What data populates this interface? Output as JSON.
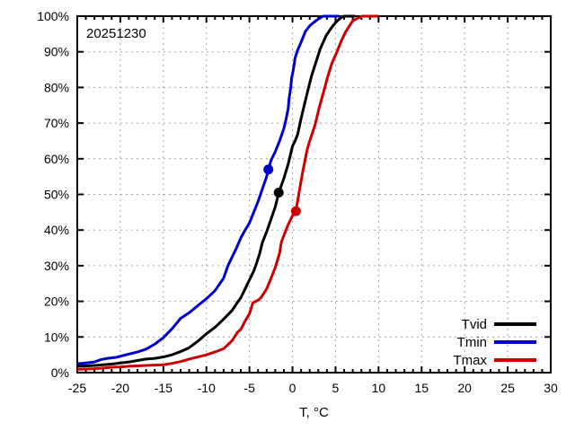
{
  "annotation": {
    "date_label": "20251230"
  },
  "axes": {
    "x": {
      "title": "T, °C",
      "min": -25,
      "max": 30,
      "major_step": 5,
      "minor_step": 1,
      "tick_labels": [
        "-25",
        "-20",
        "-15",
        "-10",
        "-5",
        "0",
        "5",
        "10",
        "15",
        "20",
        "25",
        "30"
      ]
    },
    "y": {
      "min": 0,
      "max": 100,
      "major_step": 10,
      "tick_labels": [
        "0%",
        "10%",
        "20%",
        "30%",
        "40%",
        "50%",
        "60%",
        "70%",
        "80%",
        "90%",
        "100%"
      ]
    }
  },
  "legend": {
    "position": "bottom-right",
    "entries": [
      {
        "label": "Tvid",
        "color": "#000000"
      },
      {
        "label": "Tmin",
        "color": "#0000cc"
      },
      {
        "label": "Tmax",
        "color": "#cc0000"
      }
    ]
  },
  "colors": {
    "background": "#ffffff",
    "grid": "#a6a6a6",
    "axis": "#000000"
  },
  "chart_data": {
    "type": "line",
    "title": "",
    "xlabel": "T, °C",
    "ylabel": "",
    "xlim": [
      -25,
      30
    ],
    "ylim": [
      0,
      100
    ],
    "grid": "dotted, at major ticks",
    "legend_position": "bottom-right",
    "y_unit": "percent",
    "description": "Empirical cumulative distribution functions of daily mean (Tvid), minimum (Tmin) and maximum (Tmax) temperature for calendar date 12-30; filled dots mark observed 2025-12-30 values on each CDF",
    "series": [
      {
        "name": "Tvid",
        "color": "#000000",
        "marker": {
          "x": -1.6,
          "y": 50.5
        },
        "points": [
          [
            -25,
            1.8
          ],
          [
            -24,
            1.9
          ],
          [
            -23,
            2.0
          ],
          [
            -22,
            2.2
          ],
          [
            -21,
            2.4
          ],
          [
            -20,
            2.7
          ],
          [
            -19,
            3.0
          ],
          [
            -18,
            3.4
          ],
          [
            -17,
            3.8
          ],
          [
            -16,
            4.0
          ],
          [
            -15,
            4.4
          ],
          [
            -14,
            5.0
          ],
          [
            -13,
            5.9
          ],
          [
            -12,
            7.0
          ],
          [
            -11,
            8.8
          ],
          [
            -10,
            10.9
          ],
          [
            -9,
            12.7
          ],
          [
            -8,
            15.0
          ],
          [
            -7,
            17.5
          ],
          [
            -6.4,
            19.7
          ],
          [
            -6,
            21.0
          ],
          [
            -5.5,
            23.5
          ],
          [
            -5,
            26.0
          ],
          [
            -4.5,
            28.5
          ],
          [
            -4.2,
            30.5
          ],
          [
            -3.8,
            33.5
          ],
          [
            -3.5,
            36.5
          ],
          [
            -3,
            39.5
          ],
          [
            -2.5,
            43.0
          ],
          [
            -2,
            46.5
          ],
          [
            -1.6,
            50.4
          ],
          [
            -1,
            54.5
          ],
          [
            -0.5,
            58.5
          ],
          [
            0,
            63.5
          ],
          [
            0.3,
            65.0
          ],
          [
            0.6,
            66.8
          ],
          [
            1,
            71.3
          ],
          [
            1.3,
            74.3
          ],
          [
            1.8,
            79.3
          ],
          [
            2.2,
            83.1
          ],
          [
            2.7,
            86.9
          ],
          [
            3.2,
            90.7
          ],
          [
            3.9,
            94.5
          ],
          [
            4.6,
            97.0
          ],
          [
            5,
            98.2
          ],
          [
            5.5,
            99.3
          ],
          [
            5.8,
            99.8
          ],
          [
            6,
            100
          ],
          [
            7.3,
            100
          ]
        ]
      },
      {
        "name": "Tmin",
        "color": "#0000cc",
        "marker": {
          "x": -2.8,
          "y": 57.0
        },
        "points": [
          [
            -25,
            2.5
          ],
          [
            -24,
            2.7
          ],
          [
            -23,
            3.0
          ],
          [
            -22.2,
            3.7
          ],
          [
            -21.5,
            4.0
          ],
          [
            -20.5,
            4.3
          ],
          [
            -20,
            4.6
          ],
          [
            -19,
            5.2
          ],
          [
            -18,
            5.8
          ],
          [
            -17,
            6.6
          ],
          [
            -16,
            8.0
          ],
          [
            -15,
            9.8
          ],
          [
            -14,
            12.3
          ],
          [
            -13,
            15.2
          ],
          [
            -12,
            16.8
          ],
          [
            -11,
            18.8
          ],
          [
            -10,
            20.7
          ],
          [
            -9,
            23.0
          ],
          [
            -8,
            26.5
          ],
          [
            -7.5,
            30.0
          ],
          [
            -7,
            32.5
          ],
          [
            -6.5,
            35.0
          ],
          [
            -6,
            37.8
          ],
          [
            -5.5,
            40.0
          ],
          [
            -5,
            42.0
          ],
          [
            -4.5,
            45.0
          ],
          [
            -4,
            48.0
          ],
          [
            -3.5,
            51.5
          ],
          [
            -3,
            55.0
          ],
          [
            -2.8,
            56.9
          ],
          [
            -2.5,
            59.5
          ],
          [
            -2,
            62.0
          ],
          [
            -1.5,
            65.0
          ],
          [
            -1,
            68.5
          ],
          [
            -0.8,
            70.5
          ],
          [
            -0.5,
            74.0
          ],
          [
            -0.4,
            76.8
          ],
          [
            -0.2,
            80.0
          ],
          [
            -0.1,
            82.6
          ],
          [
            0.1,
            85.0
          ],
          [
            0.3,
            88.2
          ],
          [
            0.6,
            90.5
          ],
          [
            1,
            92.7
          ],
          [
            1.5,
            95.7
          ],
          [
            2,
            97.3
          ],
          [
            2.5,
            98.3
          ],
          [
            3,
            99.2
          ],
          [
            3.4,
            99.8
          ],
          [
            3.6,
            100
          ],
          [
            5.4,
            100
          ]
        ]
      },
      {
        "name": "Tmax",
        "color": "#cc0000",
        "marker": {
          "x": 0.4,
          "y": 45.3
        },
        "points": [
          [
            -25,
            0.9
          ],
          [
            -24,
            1.0
          ],
          [
            -23,
            1.1
          ],
          [
            -22,
            1.3
          ],
          [
            -21,
            1.5
          ],
          [
            -20,
            1.6
          ],
          [
            -19,
            1.8
          ],
          [
            -18,
            1.9
          ],
          [
            -17,
            2.0
          ],
          [
            -16,
            2.1
          ],
          [
            -15,
            2.2
          ],
          [
            -14,
            2.6
          ],
          [
            -13,
            3.1
          ],
          [
            -12,
            3.8
          ],
          [
            -11,
            4.4
          ],
          [
            -10,
            5.0
          ],
          [
            -9,
            5.8
          ],
          [
            -8,
            6.7
          ],
          [
            -7,
            9.0
          ],
          [
            -6.4,
            11.3
          ],
          [
            -6,
            12.1
          ],
          [
            -5.5,
            14.5
          ],
          [
            -5,
            16.5
          ],
          [
            -4.6,
            19.6
          ],
          [
            -4,
            20.3
          ],
          [
            -3.7,
            20.9
          ],
          [
            -3,
            23.5
          ],
          [
            -2.5,
            26.4
          ],
          [
            -2,
            29.5
          ],
          [
            -1.5,
            33.5
          ],
          [
            -1.3,
            36.5
          ],
          [
            -1,
            38.5
          ],
          [
            -0.5,
            41.5
          ],
          [
            0,
            44.0
          ],
          [
            0.4,
            45.3
          ],
          [
            0.8,
            51.0
          ],
          [
            1.2,
            56.5
          ],
          [
            1.7,
            62.5
          ],
          [
            2,
            65.0
          ],
          [
            2.6,
            69.3
          ],
          [
            3.1,
            74.3
          ],
          [
            3.6,
            78.6
          ],
          [
            4.1,
            83.1
          ],
          [
            4.6,
            86.9
          ],
          [
            5.2,
            90.2
          ],
          [
            5.7,
            93.2
          ],
          [
            6.2,
            95.7
          ],
          [
            7,
            98.7
          ],
          [
            7.7,
            99.6
          ],
          [
            8.1,
            100
          ],
          [
            10,
            100
          ]
        ]
      }
    ]
  }
}
